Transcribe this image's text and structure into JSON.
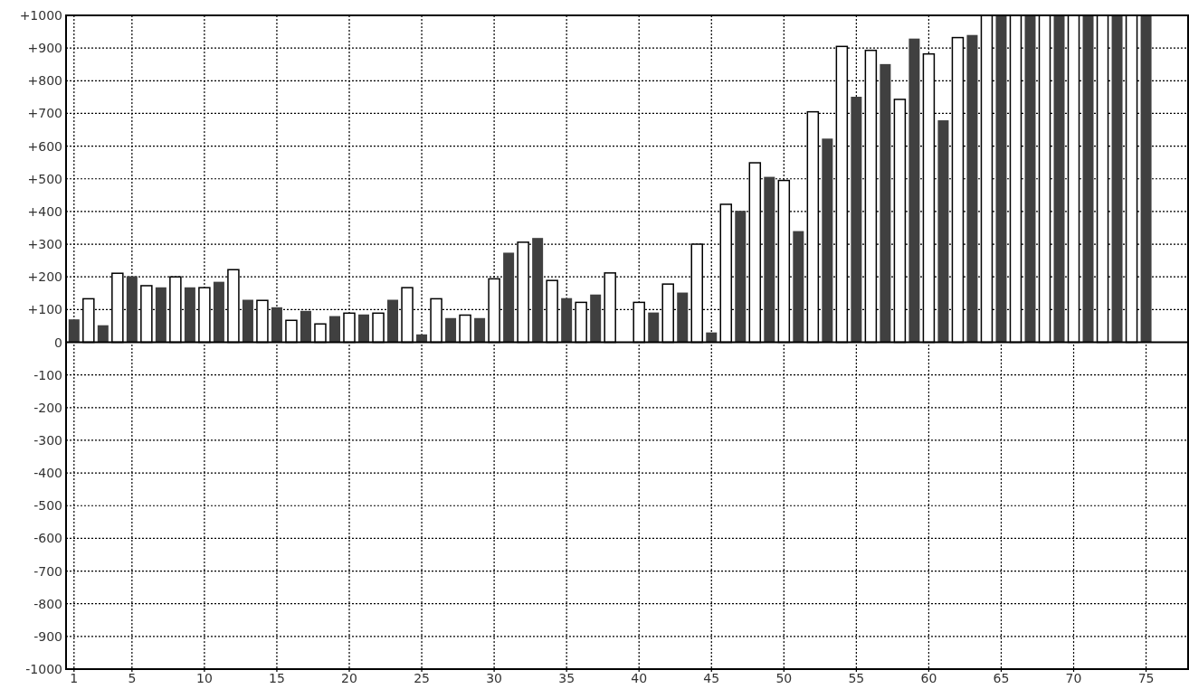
{
  "chart_data": {
    "type": "bar",
    "x": [
      1,
      2,
      3,
      4,
      5,
      6,
      7,
      8,
      9,
      10,
      11,
      12,
      13,
      14,
      15,
      16,
      17,
      18,
      19,
      20,
      21,
      22,
      23,
      24,
      25,
      26,
      27,
      28,
      29,
      30,
      31,
      32,
      33,
      34,
      35,
      36,
      37,
      38,
      39,
      40,
      41,
      42,
      43,
      44,
      45,
      46,
      47,
      48,
      49,
      50,
      51,
      52,
      53,
      54,
      55,
      56,
      57,
      58,
      59,
      60,
      61,
      62,
      63,
      64,
      65,
      66,
      67,
      68,
      69,
      70,
      71,
      72,
      73,
      74,
      75
    ],
    "values": [
      70,
      133,
      52,
      211,
      202,
      173,
      168,
      200,
      168,
      167,
      185,
      222,
      130,
      128,
      107,
      67,
      96,
      56,
      80,
      89,
      85,
      89,
      130,
      167,
      24,
      133,
      74,
      83,
      74,
      194,
      274,
      306,
      319,
      189,
      135,
      122,
      146,
      212,
      0,
      122,
      91,
      178,
      152,
      300,
      30,
      422,
      402,
      549,
      506,
      495,
      340,
      705,
      623,
      905,
      751,
      893,
      851,
      743,
      929,
      882,
      679,
      932,
      940,
      1000,
      1000,
      1000,
      1000,
      1000,
      1000,
      1000,
      1000,
      1000,
      1000,
      1000,
      1000
    ],
    "colors": [
      "#404040",
      "#ffffff",
      "#404040",
      "#ffffff",
      "#404040",
      "#ffffff",
      "#404040",
      "#ffffff",
      "#404040",
      "#ffffff",
      "#404040",
      "#ffffff",
      "#404040",
      "#ffffff",
      "#404040",
      "#ffffff",
      "#404040",
      "#ffffff",
      "#404040",
      "#ffffff",
      "#404040",
      "#ffffff",
      "#404040",
      "#ffffff",
      "#404040",
      "#ffffff",
      "#404040",
      "#ffffff",
      "#404040",
      "#ffffff",
      "#404040",
      "#ffffff",
      "#404040",
      "#ffffff",
      "#404040",
      "#ffffff",
      "#404040",
      "#ffffff",
      "#404040",
      "#ffffff",
      "#404040",
      "#ffffff",
      "#404040",
      "#ffffff",
      "#404040",
      "#ffffff",
      "#404040",
      "#ffffff",
      "#404040",
      "#ffffff",
      "#404040",
      "#ffffff",
      "#404040",
      "#ffffff",
      "#404040",
      "#ffffff",
      "#404040",
      "#ffffff",
      "#404040",
      "#ffffff",
      "#404040",
      "#ffffff",
      "#404040",
      "#ffffff",
      "#404040",
      "#ffffff",
      "#404040",
      "#ffffff",
      "#404040",
      "#ffffff",
      "#404040",
      "#ffffff",
      "#404040",
      "#ffffff",
      "#404040"
    ],
    "xlim": [
      0.45,
      77.9
    ],
    "xticks": [
      1,
      5,
      10,
      15,
      20,
      25,
      30,
      35,
      40,
      45,
      50,
      55,
      60,
      65,
      70,
      75
    ],
    "ylim": [
      -1000,
      1000
    ],
    "yticks": [
      -1000,
      -900,
      -800,
      -700,
      -600,
      -500,
      -400,
      -300,
      -200,
      -100,
      0,
      {
        "value": 100,
        "label": "+100"
      },
      {
        "value": 200,
        "label": "+200"
      },
      {
        "value": 300,
        "label": "+300"
      },
      {
        "value": 400,
        "label": "+400"
      },
      {
        "value": 500,
        "label": "+500"
      },
      {
        "value": 600,
        "label": "+600"
      },
      {
        "value": 700,
        "label": "+700"
      },
      {
        "value": 800,
        "label": "+800"
      },
      {
        "value": 900,
        "label": "+900"
      },
      {
        "value": 1000,
        "label": "+1000"
      }
    ],
    "grid": true
  }
}
